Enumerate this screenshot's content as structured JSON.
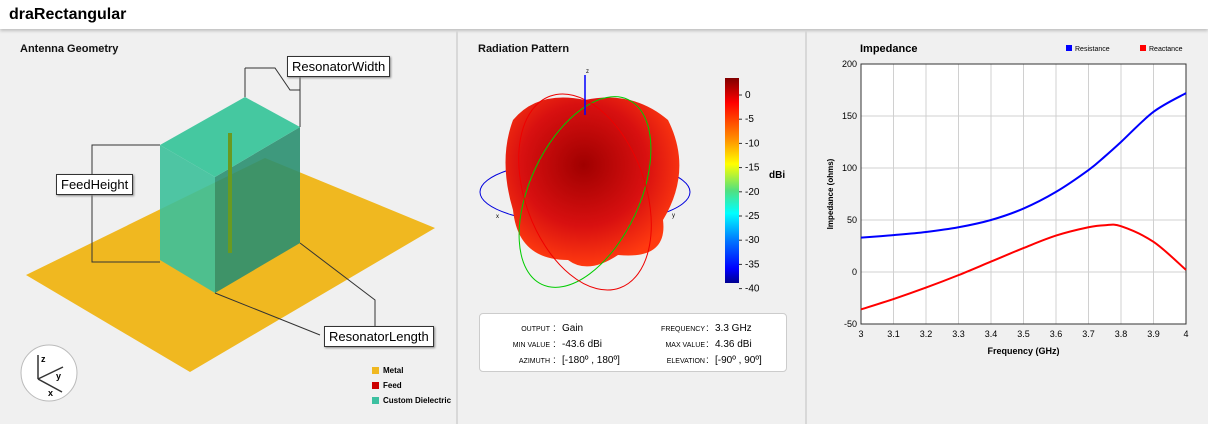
{
  "app": {
    "title": "draRectangular"
  },
  "geometry": {
    "title": "Antenna Geometry",
    "labels": {
      "width": "ResonatorWidth",
      "height": "FeedHeight",
      "length": "ResonatorLength"
    },
    "axes": {
      "x": "x",
      "y": "y",
      "z": "z"
    },
    "legend": [
      {
        "label": "Metal",
        "color": "#f0b820"
      },
      {
        "label": "Feed",
        "color": "#cc0000"
      },
      {
        "label": "Custom Dielectric",
        "color": "#3cc0a0"
      }
    ]
  },
  "pattern": {
    "title": "Radiation Pattern",
    "axes": {
      "x": "x",
      "y": "y",
      "z": "z"
    },
    "colorbar": {
      "unit": "dBi",
      "ticks": [
        "0",
        "-5",
        "-10",
        "-15",
        "-20",
        "-25",
        "-30",
        "-35",
        "-40"
      ]
    },
    "info": {
      "output_k": "OUTPUT",
      "output_v": "Gain",
      "freq_k": "FREQUENCY",
      "freq_v": "3.3 GHz",
      "min_k": "MIN VALUE",
      "min_v": "-43.6 dBi",
      "max_k": "MAX VALUE",
      "max_v": "4.36 dBi",
      "az_k": "AZIMUTH",
      "az_v": "[-180º , 180º]",
      "el_k": "ELEVATION",
      "el_v": "[-90º , 90º]"
    }
  },
  "chart_data": {
    "type": "line",
    "title": "Impedance",
    "xlabel": "Frequency (GHz)",
    "ylabel": "Impedance (ohms)",
    "xlim": [
      3,
      4
    ],
    "ylim": [
      -50,
      200
    ],
    "grid": true,
    "legend": "top-right",
    "xticks": [
      "3",
      "3.1",
      "3.2",
      "3.3",
      "3.4",
      "3.5",
      "3.6",
      "3.7",
      "3.8",
      "3.9",
      "4"
    ],
    "yticks": [
      "200",
      "150",
      "100",
      "50",
      "0",
      "-50"
    ],
    "x": [
      3,
      3.1,
      3.2,
      3.3,
      3.4,
      3.5,
      3.6,
      3.7,
      3.75,
      3.8,
      3.9,
      4
    ],
    "series": [
      {
        "name": "Resistance",
        "color": "#0000ff",
        "values": [
          33,
          35.5,
          38.5,
          43,
          50,
          61,
          77,
          98,
          111,
          125,
          154,
          172
        ]
      },
      {
        "name": "Reactance",
        "color": "#ff0000",
        "values": [
          -36,
          -26,
          -15,
          -3,
          10,
          23,
          35,
          43,
          45,
          44,
          29,
          2
        ]
      }
    ]
  }
}
